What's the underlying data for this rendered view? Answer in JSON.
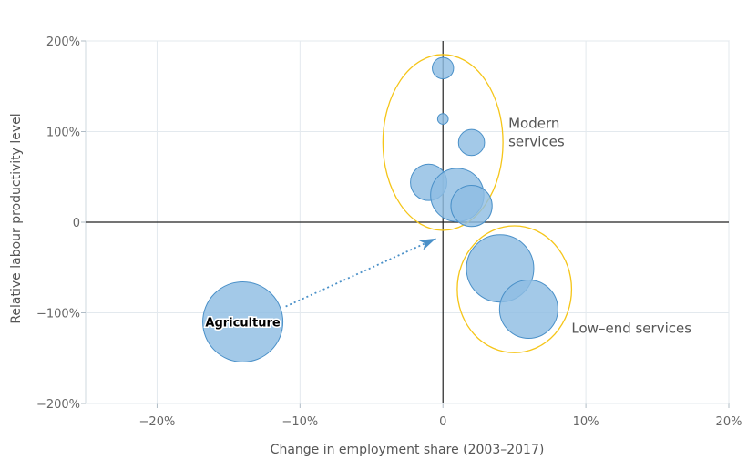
{
  "chart_data": {
    "type": "scatter",
    "subtype": "bubble",
    "xlabel": "Change in employment share (2003–2017)",
    "ylabel": "Relative labour productivity level",
    "xlim": [
      -25,
      20
    ],
    "ylim": [
      -200,
      200
    ],
    "x_ticks": [
      -20,
      -10,
      0,
      10,
      20
    ],
    "y_ticks": [
      200,
      100,
      0,
      -100,
      -200
    ],
    "x_tick_labels": [
      "−20%",
      "−10%",
      "0",
      "10%",
      "20%"
    ],
    "y_tick_labels": [
      "200%",
      "100%",
      "0",
      "−100%",
      "−200%"
    ],
    "grid": true,
    "colors": {
      "bubble_fill": "#8fbde3",
      "bubble_stroke": "#4a90c8",
      "ellipse": "#f5c518",
      "arrow": "#4a90c8"
    },
    "points": [
      {
        "x": 0,
        "y": 170,
        "size": 1.2
      },
      {
        "x": 0,
        "y": 114,
        "size": 0.3
      },
      {
        "x": 2,
        "y": 88,
        "size": 1.8
      },
      {
        "x": -1,
        "y": 44,
        "size": 3.5
      },
      {
        "x": 1,
        "y": 30,
        "size": 7.5
      },
      {
        "x": 2,
        "y": 18,
        "size": 4.5
      },
      {
        "x": 4,
        "y": -51,
        "size": 12
      },
      {
        "x": 6,
        "y": -96,
        "size": 9
      },
      {
        "x": -14,
        "y": -110,
        "size": 17,
        "label": "Agriculture"
      }
    ],
    "groups": [
      {
        "label": "Modern services",
        "lines": [
          "Modern",
          "services"
        ],
        "cx": 0,
        "cy": 88,
        "rx": 4.2,
        "ry": 97
      },
      {
        "label": "Low-end services",
        "lines": [
          "Low–end services"
        ],
        "cx": 5,
        "cy": -74,
        "rx": 4.0,
        "ry": 70
      }
    ],
    "arrow": {
      "from": [
        -11,
        -93
      ],
      "to": [
        -0.5,
        -18
      ]
    }
  }
}
